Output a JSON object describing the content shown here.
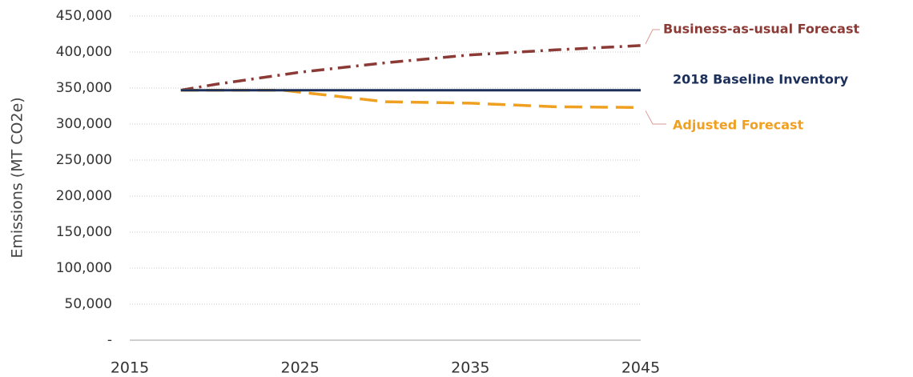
{
  "chart_data": {
    "type": "line",
    "y_label": "Emissions (MT CO2e)",
    "xlim": [
      2015,
      2045
    ],
    "xticks": [
      2015,
      2025,
      2035,
      2045
    ],
    "ylim": [
      0,
      450000
    ],
    "yticks": [
      {
        "value": 0,
        "label": "-"
      },
      {
        "value": 50000,
        "label": "50,000"
      },
      {
        "value": 100000,
        "label": "100,000"
      },
      {
        "value": 150000,
        "label": "150,000"
      },
      {
        "value": 200000,
        "label": "200,000"
      },
      {
        "value": 250000,
        "label": "250,000"
      },
      {
        "value": 300000,
        "label": "300,000"
      },
      {
        "value": 350000,
        "label": "350,000"
      },
      {
        "value": 400000,
        "label": "400,000"
      },
      {
        "value": 450000,
        "label": "450,000"
      }
    ],
    "grid": true,
    "series": [
      {
        "name": "Business-as-usual Forecast",
        "color": "#8b3a36",
        "style": "dash-dot",
        "x": [
          2018,
          2020,
          2025,
          2030,
          2035,
          2040,
          2045
        ],
        "values": [
          347000,
          355000,
          372000,
          385000,
          396000,
          403000,
          409000
        ]
      },
      {
        "name": "2018 Baseline Inventory",
        "color": "#1b2f5a",
        "style": "solid",
        "x": [
          2018,
          2045
        ],
        "values": [
          347000,
          347000
        ]
      },
      {
        "name": "Adjusted Forecast",
        "color": "#f0a020",
        "style": "dash",
        "x": [
          2018,
          2024,
          2030,
          2035,
          2040,
          2045
        ],
        "values": [
          347000,
          347000,
          331000,
          329000,
          324000,
          323000
        ]
      }
    ]
  }
}
